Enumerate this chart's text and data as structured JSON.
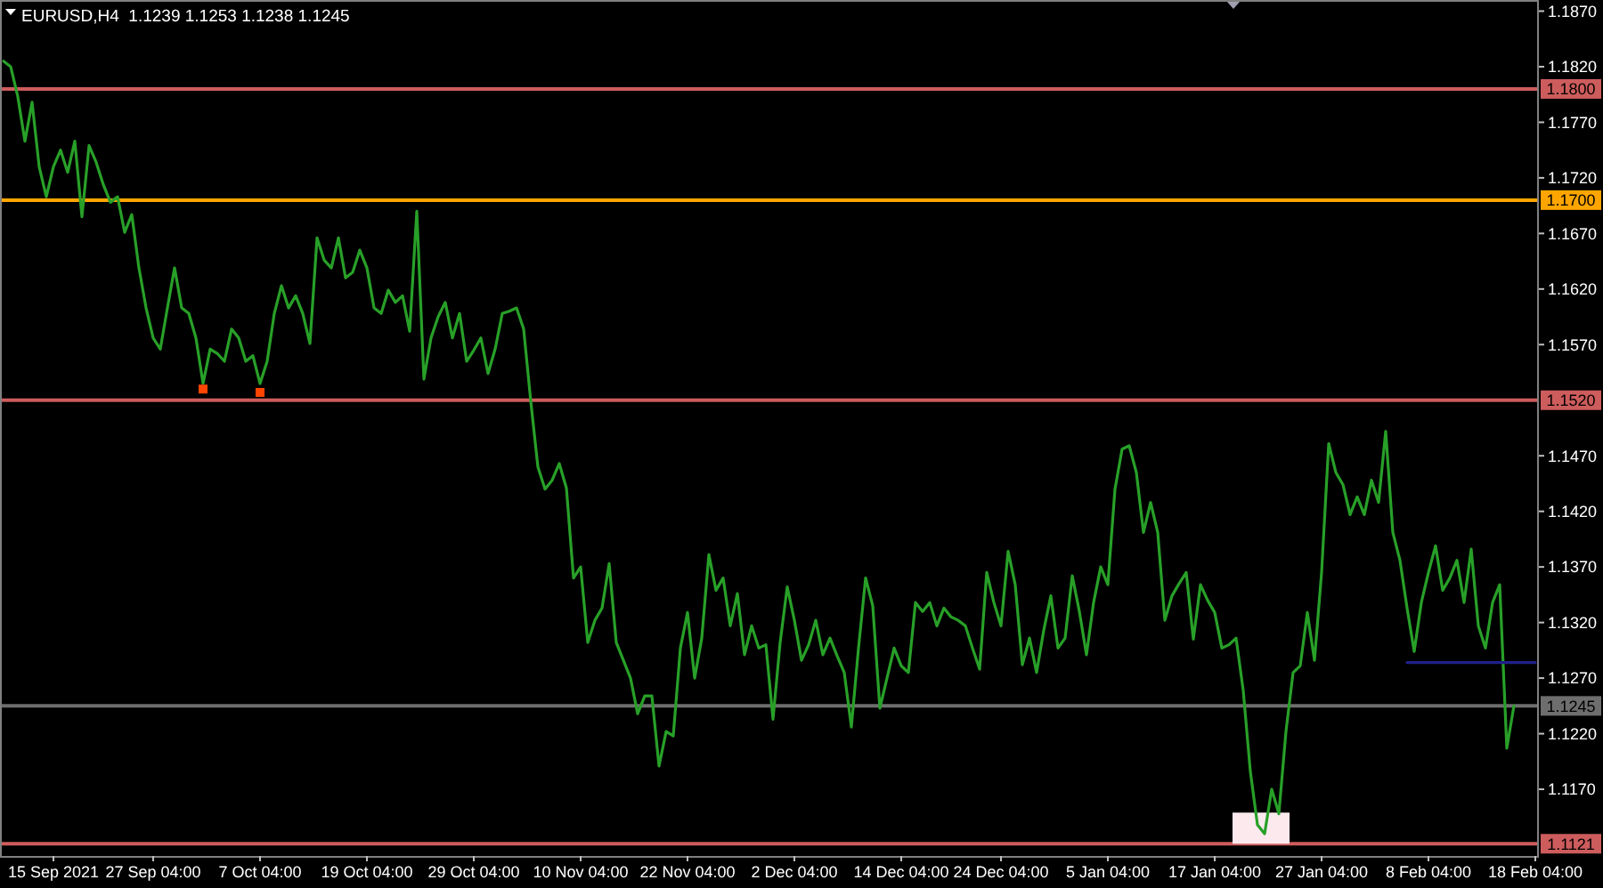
{
  "chart_data": {
    "type": "line",
    "title": "EURUSD,H4  1.1239 1.1253 1.1238 1.1245",
    "categories": [
      null,
      null,
      null,
      null,
      null,
      null,
      null,
      "15 Sep 2021",
      null,
      null,
      null,
      null,
      null,
      null,
      null,
      null,
      null,
      null,
      null,
      null,
      null,
      "27 Sep 04:00",
      null,
      null,
      null,
      null,
      null,
      null,
      null,
      null,
      null,
      null,
      null,
      null,
      null,
      null,
      "7 Oct 04:00",
      null,
      null,
      null,
      null,
      null,
      null,
      null,
      null,
      null,
      null,
      null,
      null,
      null,
      null,
      "19 Oct 04:00",
      null,
      null,
      null,
      null,
      null,
      null,
      null,
      null,
      null,
      null,
      null,
      null,
      null,
      null,
      "29 Oct 04:00",
      null,
      null,
      null,
      null,
      null,
      null,
      null,
      null,
      null,
      null,
      null,
      null,
      null,
      null,
      "10 Nov 04:00",
      null,
      null,
      null,
      null,
      null,
      null,
      null,
      null,
      null,
      null,
      null,
      null,
      null,
      null,
      "22 Nov 04:00",
      null,
      null,
      null,
      null,
      null,
      null,
      null,
      null,
      null,
      null,
      null,
      null,
      null,
      null,
      "2 Dec 04:00",
      null,
      null,
      null,
      null,
      null,
      null,
      null,
      null,
      null,
      null,
      null,
      null,
      null,
      null,
      "14 Dec 04:00",
      null,
      null,
      null,
      null,
      null,
      null,
      null,
      null,
      null,
      null,
      null,
      null,
      null,
      "24 Dec 04:00",
      null,
      null,
      null,
      null,
      null,
      null,
      null,
      null,
      null,
      null,
      null,
      null,
      null,
      null,
      "5 Jan 04:00",
      null,
      null,
      null,
      null,
      null,
      null,
      null,
      null,
      null,
      null,
      null,
      null,
      null,
      null,
      "17 Jan 04:00",
      null,
      null,
      null,
      null,
      null,
      null,
      null,
      null,
      null,
      null,
      null,
      null,
      null,
      null,
      "27 Jan 04:00",
      null,
      null,
      null,
      null,
      null,
      null,
      null,
      null,
      null,
      null,
      null,
      null,
      null,
      null,
      "8 Feb 04:00",
      null,
      null,
      null,
      null,
      null,
      null,
      null,
      null,
      null,
      null,
      null,
      null,
      null,
      null,
      "18 Feb 04:00"
    ],
    "ylim": [
      1.111,
      1.188
    ],
    "yticks": [
      {
        "value": 1.187,
        "label": "1.1870"
      },
      {
        "value": 1.182,
        "label": "1.1820"
      },
      {
        "value": 1.177,
        "label": "1.1770"
      },
      {
        "value": 1.172,
        "label": "1.1720"
      },
      {
        "value": 1.167,
        "label": "1.1670"
      },
      {
        "value": 1.162,
        "label": "1.1620"
      },
      {
        "value": 1.157,
        "label": "1.1570"
      },
      {
        "value": 1.147,
        "label": "1.1470"
      },
      {
        "value": 1.142,
        "label": "1.1420"
      },
      {
        "value": 1.137,
        "label": "1.1370"
      },
      {
        "value": 1.132,
        "label": "1.1320"
      },
      {
        "value": 1.127,
        "label": "1.1270"
      },
      {
        "value": 1.122,
        "label": "1.1220"
      },
      {
        "value": 1.117,
        "label": "1.1170"
      }
    ],
    "ref_lines": [
      {
        "axis": "y",
        "value": 1.18,
        "label": "1.1800",
        "color": "#cd5c5c"
      },
      {
        "axis": "y",
        "value": 1.17,
        "label": "1.1700",
        "color": "#ffa500"
      },
      {
        "axis": "y",
        "value": 1.152,
        "label": "1.1520",
        "color": "#cd5c5c"
      },
      {
        "axis": "y",
        "value": 1.1245,
        "label": "1.1245",
        "color": "#6e6e6e"
      },
      {
        "axis": "y",
        "value": 1.1121,
        "label": "1.1121",
        "color": "#cd5c5c"
      }
    ],
    "series": [
      {
        "type": "bar",
        "color": "#fbe9ee",
        "values": [
          null,
          null,
          null,
          null,
          null,
          null,
          null,
          null,
          null,
          null,
          null,
          null,
          null,
          null,
          null,
          null,
          null,
          null,
          null,
          null,
          null,
          null,
          null,
          null,
          null,
          null,
          null,
          null,
          null,
          null,
          null,
          null,
          null,
          null,
          null,
          null,
          null,
          null,
          null,
          null,
          null,
          null,
          null,
          null,
          null,
          null,
          null,
          null,
          null,
          null,
          null,
          null,
          null,
          null,
          null,
          null,
          null,
          null,
          null,
          null,
          null,
          null,
          null,
          null,
          null,
          null,
          null,
          null,
          null,
          null,
          null,
          null,
          null,
          null,
          null,
          null,
          null,
          null,
          null,
          null,
          null,
          null,
          null,
          null,
          null,
          null,
          null,
          null,
          null,
          null,
          null,
          null,
          null,
          null,
          null,
          null,
          null,
          null,
          null,
          null,
          null,
          null,
          null,
          null,
          null,
          null,
          null,
          null,
          null,
          null,
          null,
          null,
          null,
          null,
          null,
          null,
          null,
          null,
          null,
          null,
          null,
          null,
          null,
          null,
          null,
          null,
          null,
          null,
          null,
          null,
          null,
          null,
          null,
          null,
          null,
          null,
          null,
          null,
          null,
          null,
          null,
          null,
          null,
          null,
          null,
          null,
          null,
          null,
          null,
          null,
          null,
          null,
          null,
          null,
          null,
          null,
          null,
          null,
          null,
          null,
          null,
          null,
          null,
          null,
          null,
          null,
          null,
          null,
          null,
          null,
          null,
          null,
          null,
          0.0028,
          0.0028,
          0.0028,
          0.0028,
          0.0028,
          0.0028,
          0.0028,
          0.0028,
          null,
          null,
          null,
          null,
          null,
          null,
          null,
          null,
          null,
          null,
          null,
          null,
          null,
          null,
          null,
          null,
          null,
          null,
          null,
          null,
          null,
          null,
          null,
          null,
          null,
          null,
          null,
          null,
          null,
          null,
          null,
          null,
          null,
          null,
          null
        ],
        "base": [
          null,
          null,
          null,
          null,
          null,
          null,
          null,
          null,
          null,
          null,
          null,
          null,
          null,
          null,
          null,
          null,
          null,
          null,
          null,
          null,
          null,
          null,
          null,
          null,
          null,
          null,
          null,
          null,
          null,
          null,
          null,
          null,
          null,
          null,
          null,
          null,
          null,
          null,
          null,
          null,
          null,
          null,
          null,
          null,
          null,
          null,
          null,
          null,
          null,
          null,
          null,
          null,
          null,
          null,
          null,
          null,
          null,
          null,
          null,
          null,
          null,
          null,
          null,
          null,
          null,
          null,
          null,
          null,
          null,
          null,
          null,
          null,
          null,
          null,
          null,
          null,
          null,
          null,
          null,
          null,
          null,
          null,
          null,
          null,
          null,
          null,
          null,
          null,
          null,
          null,
          null,
          null,
          null,
          null,
          null,
          null,
          null,
          null,
          null,
          null,
          null,
          null,
          null,
          null,
          null,
          null,
          null,
          null,
          null,
          null,
          null,
          null,
          null,
          null,
          null,
          null,
          null,
          null,
          null,
          null,
          null,
          null,
          null,
          null,
          null,
          null,
          null,
          null,
          null,
          null,
          null,
          null,
          null,
          null,
          null,
          null,
          null,
          null,
          null,
          null,
          null,
          null,
          null,
          null,
          null,
          null,
          null,
          null,
          null,
          null,
          null,
          null,
          null,
          null,
          null,
          null,
          null,
          null,
          null,
          null,
          null,
          null,
          null,
          null,
          null,
          null,
          null,
          null,
          null,
          null,
          null,
          null,
          null,
          1.1121,
          1.1121,
          1.1121,
          1.1121,
          1.1121,
          1.1121,
          1.1121,
          1.1121,
          null,
          null,
          null,
          null,
          null,
          null,
          null,
          null,
          null,
          null,
          null,
          null,
          null,
          null,
          null,
          null,
          null,
          null,
          null,
          null,
          null,
          null,
          null,
          null,
          null,
          null,
          null,
          null,
          null,
          null,
          null,
          null,
          null,
          null,
          null
        ]
      },
      {
        "color": "#28a028",
        "values": [
          1.1825,
          1.182,
          1.1793,
          1.1753,
          1.1788,
          1.173,
          1.1703,
          1.173,
          1.1745,
          1.1725,
          1.1753,
          1.1685,
          1.1749,
          1.1734,
          1.1714,
          1.1698,
          1.1703,
          1.1671,
          1.1687,
          1.1639,
          1.1603,
          1.1576,
          1.1566,
          1.1603,
          1.1639,
          1.1603,
          1.1598,
          1.1576,
          1.1535,
          1.1566,
          1.1562,
          1.1555,
          1.1584,
          1.1576,
          1.1555,
          1.156,
          1.1535,
          1.1555,
          1.1598,
          1.1623,
          1.1603,
          1.1614,
          1.1598,
          1.1571,
          1.1666,
          1.1646,
          1.1639,
          1.1666,
          1.163,
          1.1635,
          1.1655,
          1.1639,
          1.1603,
          1.1598,
          1.1619,
          1.1608,
          1.1614,
          1.1582,
          1.169,
          1.1539,
          1.1576,
          1.1595,
          1.1608,
          1.1576,
          1.1598,
          1.1555,
          1.1565,
          1.1576,
          1.1544,
          1.1566,
          1.1598,
          1.16,
          1.1603,
          1.1584,
          1.1519,
          1.146,
          1.144,
          1.1448,
          1.1463,
          1.1441,
          1.136,
          1.137,
          1.1302,
          1.1322,
          1.1333,
          1.1373,
          1.1302,
          1.1286,
          1.127,
          1.1238,
          1.1254,
          1.1254,
          1.1191,
          1.1222,
          1.1218,
          1.1297,
          1.1329,
          1.127,
          1.1306,
          1.1381,
          1.1349,
          1.136,
          1.1317,
          1.1346,
          1.1291,
          1.1317,
          1.1297,
          1.13,
          1.1233,
          1.1302,
          1.1352,
          1.1322,
          1.1286,
          1.13,
          1.1322,
          1.1291,
          1.1306,
          1.129,
          1.1275,
          1.1226,
          1.1297,
          1.136,
          1.1335,
          1.1243,
          1.127,
          1.1297,
          1.1281,
          1.1275,
          1.1338,
          1.133,
          1.1338,
          1.1317,
          1.1333,
          1.1325,
          1.1322,
          1.1317,
          1.1297,
          1.1278,
          1.1365,
          1.1338,
          1.1317,
          1.1384,
          1.1354,
          1.1282,
          1.1306,
          1.1275,
          1.1313,
          1.1344,
          1.1297,
          1.1306,
          1.1362,
          1.133,
          1.1291,
          1.1338,
          1.137,
          1.1354,
          1.144,
          1.1476,
          1.1479,
          1.1455,
          1.1401,
          1.1428,
          1.1401,
          1.1322,
          1.1344,
          1.1355,
          1.1365,
          1.1305,
          1.1354,
          1.134,
          1.1329,
          1.1297,
          1.13,
          1.1306,
          1.1259,
          1.1186,
          1.1138,
          1.113,
          1.117,
          1.1148,
          1.1222,
          1.1275,
          1.1281,
          1.1329,
          1.1286,
          1.1365,
          1.1481,
          1.1455,
          1.1444,
          1.1417,
          1.1433,
          1.1417,
          1.1448,
          1.1428,
          1.1492,
          1.1401,
          1.1376,
          1.1333,
          1.1294,
          1.1338,
          1.1365,
          1.1389,
          1.1349,
          1.136,
          1.1376,
          1.1338,
          1.1386,
          1.1317,
          1.1297,
          1.1338,
          1.1354,
          1.1207,
          1.1245,
          null,
          null,
          null
        ]
      },
      {
        "type": "line",
        "color": "#20208c",
        "values": [
          null,
          null,
          null,
          null,
          null,
          null,
          null,
          null,
          null,
          null,
          null,
          null,
          null,
          null,
          null,
          null,
          null,
          null,
          null,
          null,
          null,
          null,
          null,
          null,
          null,
          null,
          null,
          null,
          null,
          null,
          null,
          null,
          null,
          null,
          null,
          null,
          null,
          null,
          null,
          null,
          null,
          null,
          null,
          null,
          null,
          null,
          null,
          null,
          null,
          null,
          null,
          null,
          null,
          null,
          null,
          null,
          null,
          null,
          null,
          null,
          null,
          null,
          null,
          null,
          null,
          null,
          null,
          null,
          null,
          null,
          null,
          null,
          null,
          null,
          null,
          null,
          null,
          null,
          null,
          null,
          null,
          null,
          null,
          null,
          null,
          null,
          null,
          null,
          null,
          null,
          null,
          null,
          null,
          null,
          null,
          null,
          null,
          null,
          null,
          null,
          null,
          null,
          null,
          null,
          null,
          null,
          null,
          null,
          null,
          null,
          null,
          null,
          null,
          null,
          null,
          null,
          null,
          null,
          null,
          null,
          null,
          null,
          null,
          null,
          null,
          null,
          null,
          null,
          null,
          null,
          null,
          null,
          null,
          null,
          null,
          null,
          null,
          null,
          null,
          null,
          null,
          null,
          null,
          null,
          null,
          null,
          null,
          null,
          null,
          null,
          null,
          null,
          null,
          null,
          null,
          null,
          null,
          null,
          null,
          null,
          null,
          null,
          null,
          null,
          null,
          null,
          null,
          null,
          null,
          null,
          null,
          null,
          null,
          null,
          null,
          null,
          null,
          null,
          null,
          null,
          null,
          null,
          null,
          null,
          null,
          null,
          null,
          null,
          null,
          null,
          null,
          null,
          null,
          null,
          null,
          null,
          null,
          1.1284,
          1.1284,
          1.1284,
          1.1284,
          1.1284,
          1.1284,
          1.1284,
          1.1284,
          1.1284,
          1.1284,
          1.1284,
          1.1284,
          1.1284,
          1.1284,
          1.1284,
          1.1284,
          1.1284,
          1.1284,
          1.1284
        ]
      },
      {
        "type": "scatter",
        "color": "#ff4500",
        "marker": "square",
        "values": [
          null,
          null,
          null,
          null,
          null,
          null,
          null,
          null,
          null,
          null,
          null,
          null,
          null,
          null,
          null,
          null,
          null,
          null,
          null,
          null,
          null,
          null,
          null,
          null,
          null,
          null,
          null,
          null,
          1.153,
          null,
          null,
          null,
          null,
          null,
          null,
          null,
          1.1527,
          null,
          null,
          null,
          null,
          null,
          null,
          null,
          null,
          null,
          null,
          null,
          null,
          null,
          null,
          null,
          null,
          null,
          null,
          null,
          null,
          null,
          null,
          null,
          null,
          null,
          null,
          null,
          null,
          null,
          null,
          null,
          null,
          null,
          null,
          null,
          null,
          null,
          null,
          null,
          null,
          null,
          null,
          null,
          null,
          null,
          null,
          null,
          null,
          null,
          null,
          null,
          null,
          null,
          null,
          null,
          null,
          null,
          null,
          null,
          null,
          null,
          null,
          null,
          null,
          null,
          null,
          null,
          null,
          null,
          null,
          null,
          null,
          null,
          null,
          null,
          null,
          null,
          null,
          null,
          null,
          null,
          null,
          null,
          null,
          null,
          null,
          null,
          null,
          null,
          null,
          null,
          null,
          null,
          null,
          null,
          null,
          null,
          null,
          null,
          null,
          null,
          null,
          null,
          null,
          null,
          null,
          null,
          null,
          null,
          null,
          null,
          null,
          null,
          null,
          null,
          null,
          null,
          null,
          null,
          null,
          null,
          null,
          null,
          null,
          null,
          null,
          null,
          null,
          null,
          null,
          null,
          null,
          null,
          null,
          null,
          null,
          null,
          null,
          null,
          null,
          null,
          null,
          null,
          null,
          null,
          null,
          null,
          null,
          null,
          null,
          null,
          null,
          null,
          null,
          null,
          null,
          null,
          null,
          null,
          null,
          null,
          null,
          null,
          null,
          null,
          null,
          null,
          null,
          null,
          null,
          null,
          null,
          null,
          null,
          null,
          null,
          null,
          null,
          null
        ]
      }
    ]
  }
}
